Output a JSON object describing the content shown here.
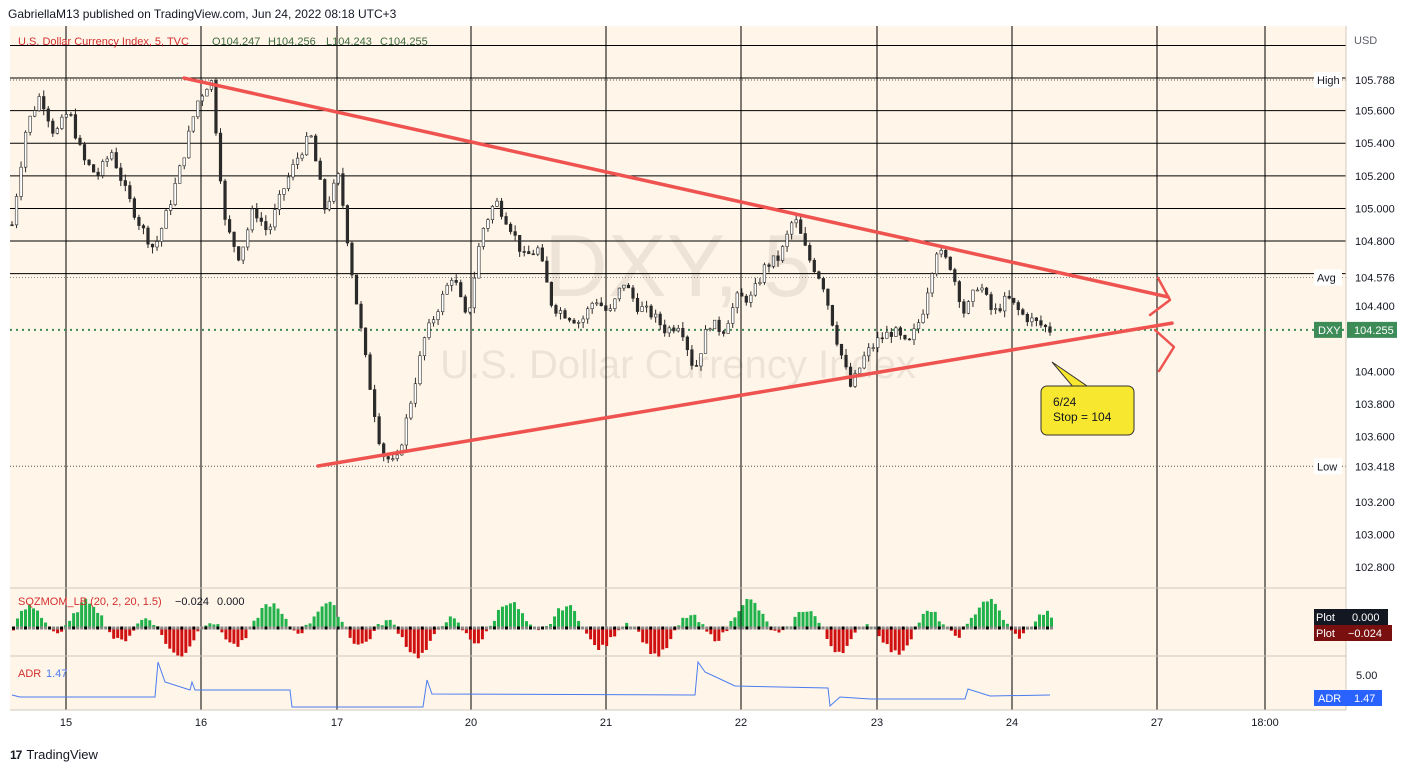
{
  "header": {
    "published": "GabriellaM13 published on TradingView.com, Jun 24, 2022 08:18 UTC+3"
  },
  "branding": {
    "logo_icon": "tradingview-logo-icon",
    "name": "TradingView"
  },
  "legend": {
    "symbol": "U.S. Dollar Currency Index, 5, TVC",
    "open": "O104.247",
    "high": "H104.256",
    "low": "L104.243",
    "close": "C104.255"
  },
  "watermark": {
    "ticker": "DXY, 5",
    "name": "U.S. Dollar Currency Index"
  },
  "price_axis": {
    "currency": "USD",
    "ticks": [
      "105.600",
      "105.400",
      "105.200",
      "105.000",
      "104.800",
      "104.400",
      "104.000",
      "103.800",
      "103.600",
      "103.200",
      "103.000",
      "102.800"
    ]
  },
  "price_labels": {
    "high": {
      "label": "High",
      "value": "105.788"
    },
    "avg": {
      "label": "Avg",
      "value": "104.576"
    },
    "last": {
      "label": "DXY",
      "value": "104.255"
    },
    "low": {
      "label": "Low",
      "value": "103.418"
    }
  },
  "time_axis": {
    "ticks": [
      "15",
      "16",
      "17",
      "20",
      "21",
      "22",
      "23",
      "24",
      "27",
      "18:00"
    ]
  },
  "annotation": {
    "line1": "6/24",
    "line2": "Stop = 104"
  },
  "indicators": {
    "sqzmom": {
      "label": "SQZMOM_LB (20, 2, 20, 1.5)",
      "v1": "−0.024",
      "v2": "0.000",
      "plot1_label": "Plot",
      "plot1_value": "0.000",
      "plot2_label": "Plot",
      "plot2_value": "−0.024"
    },
    "adr": {
      "label": "ADR",
      "value": "1.47",
      "axis_tick": "5.00",
      "badge_label": "ADR",
      "badge_value": "1.47"
    }
  },
  "colors": {
    "background": "#fff5e8",
    "trendline": "#ef5350",
    "candle": "#2a2a2a",
    "legend_red": "#d32f2f",
    "bull": "#22b24c",
    "bear": "#d01010",
    "adr_line": "#4a7cf0",
    "note_fill": "#f7e72e",
    "last_price_fill": "#3d8b57"
  },
  "chart_data": {
    "type": "line",
    "title": "U.S. Dollar Currency Index, 5, TVC",
    "ylabel": "USD",
    "ylim": [
      102.7,
      105.93
    ],
    "grid": true,
    "x_ticks": [
      "15",
      "16",
      "17",
      "20",
      "21",
      "22",
      "23",
      "24",
      "27",
      "18:00"
    ],
    "series": [
      {
        "name": "DXY",
        "points": [
          [
            "15",
            104.9
          ],
          [
            "15",
            105.5
          ],
          [
            "15",
            105.7
          ],
          [
            "15",
            105.45
          ],
          [
            "15",
            105.6
          ],
          [
            "15",
            105.3
          ],
          [
            "15",
            105.2
          ],
          [
            "15",
            105.35
          ],
          [
            "15",
            105.1
          ],
          [
            "15",
            104.9
          ],
          [
            "15",
            104.75
          ],
          [
            "15",
            105.0
          ],
          [
            "15",
            105.3
          ],
          [
            "16",
            105.65
          ],
          [
            "16",
            105.8
          ],
          [
            "16",
            104.9
          ],
          [
            "16",
            104.7
          ],
          [
            "16",
            105.0
          ],
          [
            "16",
            104.85
          ],
          [
            "16",
            105.1
          ],
          [
            "16",
            105.3
          ],
          [
            "16",
            105.45
          ],
          [
            "16",
            105.0
          ],
          [
            "16",
            105.2
          ],
          [
            "16",
            104.55
          ],
          [
            "17",
            104.0
          ],
          [
            "17",
            103.5
          ],
          [
            "17",
            103.42
          ],
          [
            "17",
            103.8
          ],
          [
            "17",
            104.2
          ],
          [
            "17",
            104.4
          ],
          [
            "17",
            104.6
          ],
          [
            "17",
            104.3
          ],
          [
            "17",
            104.85
          ],
          [
            "17",
            105.05
          ],
          [
            "20",
            104.9
          ],
          [
            "20",
            104.7
          ],
          [
            "20",
            104.75
          ],
          [
            "20",
            104.4
          ],
          [
            "20",
            104.35
          ],
          [
            "20",
            104.3
          ],
          [
            "20",
            104.45
          ],
          [
            "20",
            104.35
          ],
          [
            "20",
            104.55
          ],
          [
            "21",
            104.4
          ],
          [
            "21",
            104.35
          ],
          [
            "21",
            104.25
          ],
          [
            "21",
            104.3
          ],
          [
            "21",
            104.0
          ],
          [
            "21",
            104.3
          ],
          [
            "21",
            104.25
          ],
          [
            "21",
            104.45
          ],
          [
            "21",
            104.45
          ],
          [
            "21",
            104.65
          ],
          [
            "22",
            104.7
          ],
          [
            "22",
            104.95
          ],
          [
            "22",
            104.7
          ],
          [
            "22",
            104.55
          ],
          [
            "22",
            104.2
          ],
          [
            "22",
            103.9
          ],
          [
            "22",
            104.1
          ],
          [
            "22",
            104.2
          ],
          [
            "23",
            104.25
          ],
          [
            "23",
            104.15
          ],
          [
            "23",
            104.35
          ],
          [
            "23",
            104.75
          ],
          [
            "23",
            104.65
          ],
          [
            "23",
            104.35
          ],
          [
            "23",
            104.55
          ],
          [
            "24",
            104.35
          ],
          [
            "24",
            104.45
          ],
          [
            "24",
            104.35
          ],
          [
            "24",
            104.3
          ],
          [
            "24",
            104.255
          ]
        ]
      },
      {
        "name": "Upper trendline",
        "points": [
          [
            "16",
            105.8
          ],
          [
            "24",
            104.58
          ]
        ]
      },
      {
        "name": "Lower trendline",
        "points": [
          [
            "17",
            103.42
          ],
          [
            "24",
            104.1
          ]
        ]
      }
    ],
    "reference_lines": {
      "High": 105.788,
      "Avg": 104.576,
      "Last": 104.255,
      "Low": 103.418
    }
  }
}
